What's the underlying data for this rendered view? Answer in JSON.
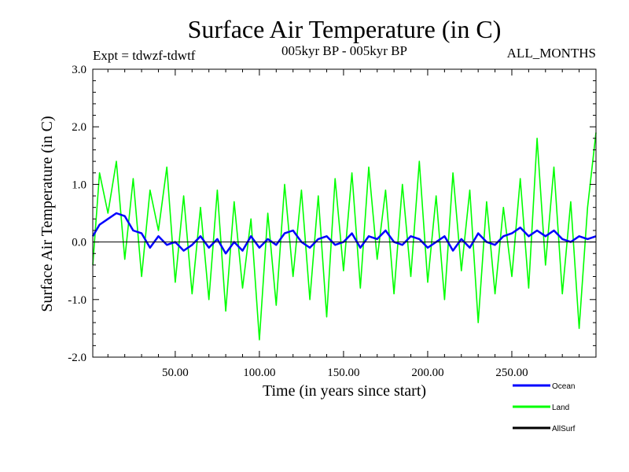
{
  "chart_data": {
    "type": "line",
    "title": "Surface Air Temperature (in C)",
    "subtitle": "005kyr BP - 005kyr BP",
    "experiment": "Expt = tdwzf-tdwtf",
    "months": "ALL_MONTHS",
    "xlabel": "Time (in years since start)",
    "ylabel": "Surface Air Temperature (in C)",
    "xlim": [
      1,
      300
    ],
    "ylim": [
      -2.0,
      3.0
    ],
    "x_ticks": [
      50,
      100,
      150,
      200,
      250
    ],
    "x_tick_labels": [
      "50.00",
      "100.00",
      "150.00",
      "200.00",
      "250.00"
    ],
    "y_ticks": [
      -2.0,
      -1.0,
      0.0,
      1.0,
      2.0,
      3.0
    ],
    "y_tick_labels": [
      "-2.0",
      "-1.0",
      "0.0",
      "1.0",
      "2.0",
      "3.0"
    ],
    "grid": false,
    "legend_position": "bottom-right",
    "series": [
      {
        "name": "Land",
        "color": "#00ff00",
        "x": [
          1,
          5,
          10,
          15,
          20,
          25,
          30,
          35,
          40,
          45,
          50,
          55,
          60,
          65,
          70,
          75,
          80,
          85,
          90,
          95,
          100,
          105,
          110,
          115,
          120,
          125,
          130,
          135,
          140,
          145,
          150,
          155,
          160,
          165,
          170,
          175,
          180,
          185,
          190,
          195,
          200,
          205,
          210,
          215,
          220,
          225,
          230,
          235,
          240,
          245,
          250,
          255,
          260,
          265,
          270,
          275,
          280,
          285,
          290,
          295,
          300
        ],
        "y": [
          -0.4,
          1.2,
          0.5,
          1.4,
          -0.3,
          1.1,
          -0.6,
          0.9,
          0.2,
          1.3,
          -0.7,
          0.8,
          -0.9,
          0.6,
          -1.0,
          0.9,
          -1.2,
          0.7,
          -0.8,
          0.4,
          -1.7,
          0.5,
          -1.1,
          1.0,
          -0.6,
          0.9,
          -1.0,
          0.8,
          -1.3,
          1.1,
          -0.5,
          1.2,
          -0.8,
          1.3,
          -0.3,
          0.9,
          -0.9,
          1.0,
          -0.6,
          1.4,
          -0.7,
          0.8,
          -1.0,
          1.2,
          -0.5,
          0.9,
          -1.4,
          0.7,
          -0.9,
          0.6,
          -0.6,
          1.1,
          -0.8,
          1.8,
          -0.4,
          1.3,
          -0.9,
          0.7,
          -1.5,
          0.6,
          1.9
        ]
      },
      {
        "name": "Ocean",
        "color": "#0000ff",
        "x": [
          1,
          5,
          10,
          15,
          20,
          25,
          30,
          35,
          40,
          45,
          50,
          55,
          60,
          65,
          70,
          75,
          80,
          85,
          90,
          95,
          100,
          105,
          110,
          115,
          120,
          125,
          130,
          135,
          140,
          145,
          150,
          155,
          160,
          165,
          170,
          175,
          180,
          185,
          190,
          195,
          200,
          205,
          210,
          215,
          220,
          225,
          230,
          235,
          240,
          245,
          250,
          255,
          260,
          265,
          270,
          275,
          280,
          285,
          290,
          295,
          300
        ],
        "y": [
          0.1,
          0.3,
          0.4,
          0.5,
          0.45,
          0.2,
          0.15,
          -0.1,
          0.1,
          -0.05,
          0.0,
          -0.15,
          -0.05,
          0.1,
          -0.1,
          0.05,
          -0.2,
          0.0,
          -0.15,
          0.1,
          -0.1,
          0.05,
          -0.05,
          0.15,
          0.2,
          0.0,
          -0.1,
          0.05,
          0.1,
          -0.05,
          0.0,
          0.15,
          -0.1,
          0.1,
          0.05,
          0.2,
          0.0,
          -0.05,
          0.1,
          0.05,
          -0.1,
          0.0,
          0.1,
          -0.15,
          0.05,
          -0.1,
          0.15,
          0.0,
          -0.05,
          0.1,
          0.15,
          0.25,
          0.1,
          0.2,
          0.1,
          0.2,
          0.05,
          0.0,
          0.1,
          0.05,
          0.1
        ]
      },
      {
        "name": "AllSurf",
        "color": "#000000",
        "x": [],
        "y": []
      }
    ]
  }
}
